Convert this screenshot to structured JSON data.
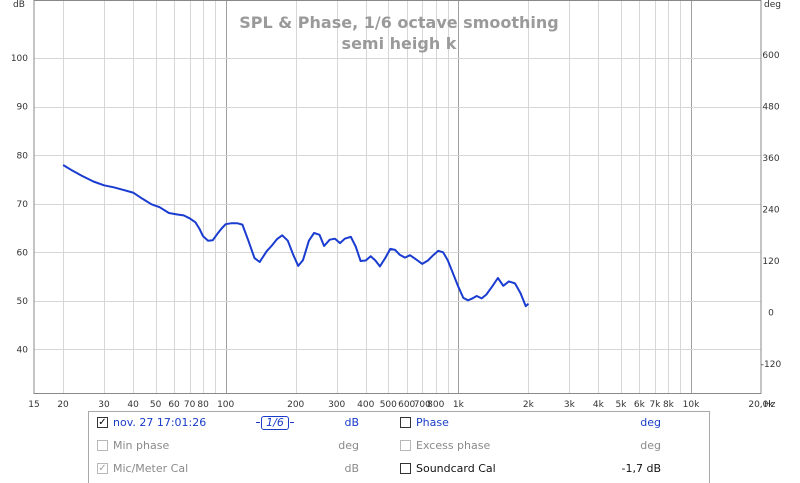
{
  "chart_data": {
    "type": "line",
    "title": "SPL & Phase, 1/6 octave smoothing",
    "subtitle": "semi heigh k",
    "xlabel": "Hz",
    "ylabel": "dB",
    "y2label": "deg",
    "x_scale": "log",
    "xlim": [
      15,
      20000
    ],
    "ylim": [
      31,
      112
    ],
    "y2lim": [
      -188,
      728
    ],
    "x_ticks": [
      {
        "v": 15,
        "label": "15"
      },
      {
        "v": 20,
        "label": "20"
      },
      {
        "v": 30,
        "label": "30"
      },
      {
        "v": 40,
        "label": "40"
      },
      {
        "v": 50,
        "label": "50"
      },
      {
        "v": 60,
        "label": "60"
      },
      {
        "v": 70,
        "label": "70"
      },
      {
        "v": 80,
        "label": "80"
      },
      {
        "v": 100,
        "label": "100"
      },
      {
        "v": 200,
        "label": "200"
      },
      {
        "v": 300,
        "label": "300"
      },
      {
        "v": 400,
        "label": "400"
      },
      {
        "v": 500,
        "label": "500"
      },
      {
        "v": 600,
        "label": "600"
      },
      {
        "v": 700,
        "label": "700"
      },
      {
        "v": 800,
        "label": "800"
      },
      {
        "v": 1000,
        "label": "1k"
      },
      {
        "v": 2000,
        "label": "2k"
      },
      {
        "v": 3000,
        "label": "3k"
      },
      {
        "v": 4000,
        "label": "4k"
      },
      {
        "v": 5000,
        "label": "5k"
      },
      {
        "v": 6000,
        "label": "6k"
      },
      {
        "v": 7000,
        "label": "7k"
      },
      {
        "v": 8000,
        "label": "8k"
      },
      {
        "v": 10000,
        "label": "10k"
      },
      {
        "v": 20000,
        "label": "20,0k"
      }
    ],
    "y_ticks": [
      40,
      50,
      60,
      70,
      80,
      90,
      100
    ],
    "y2_ticks": [
      -120,
      0,
      120,
      240,
      360,
      480,
      600
    ],
    "grid": true,
    "series": [
      {
        "name": "nov. 27 17:01:26",
        "color": "#1a3cd0",
        "x": [
          20,
          22,
          24,
          27,
          30,
          33,
          36,
          40,
          44,
          48,
          52,
          57,
          62,
          66,
          70,
          74,
          77,
          80,
          84,
          88,
          92,
          96,
          100,
          106,
          112,
          118,
          125,
          133,
          140,
          150,
          158,
          166,
          175,
          185,
          195,
          205,
          215,
          228,
          240,
          253,
          265,
          280,
          295,
          310,
          325,
          345,
          362,
          380,
          400,
          420,
          440,
          460,
          485,
          510,
          535,
          560,
          590,
          620,
          660,
          700,
          740,
          780,
          820,
          860,
          900,
          950,
          1000,
          1050,
          1100,
          1150,
          1200,
          1260,
          1320,
          1400,
          1480,
          1560,
          1650,
          1750,
          1850,
          1950,
          2000
        ],
        "y": [
          78.0,
          76.8,
          75.8,
          74.6,
          73.8,
          73.4,
          72.9,
          72.3,
          71.0,
          69.9,
          69.3,
          68.1,
          67.8,
          67.6,
          67.0,
          66.2,
          64.9,
          63.3,
          62.4,
          62.5,
          63.8,
          64.9,
          65.8,
          66.0,
          66.0,
          65.7,
          62.5,
          58.8,
          58.0,
          60.2,
          61.4,
          62.7,
          63.5,
          62.4,
          59.5,
          57.2,
          58.4,
          62.4,
          64.0,
          63.6,
          61.3,
          62.6,
          62.8,
          61.9,
          62.8,
          63.2,
          61.2,
          58.2,
          58.3,
          59.2,
          58.3,
          57.1,
          58.8,
          60.7,
          60.5,
          59.5,
          58.9,
          59.4,
          58.5,
          57.6,
          58.3,
          59.4,
          60.3,
          60.0,
          58.4,
          55.6,
          52.9,
          50.6,
          50.1,
          50.5,
          51.0,
          50.5,
          51.3,
          53.0,
          54.7,
          53.1,
          54.0,
          53.6,
          51.6,
          48.9,
          49.4
        ]
      }
    ]
  },
  "legend": {
    "rows": [
      {
        "checked": true,
        "name": "nov. 27 17:01:26",
        "unit": "dB",
        "right_checked": false,
        "right_name": "Phase",
        "right_unit": "deg"
      },
      {
        "checked": false,
        "name": "Min phase",
        "unit": "deg",
        "right_checked": false,
        "right_name": "Excess phase",
        "right_unit": "deg"
      },
      {
        "checked": true,
        "name": "Mic/Meter Cal",
        "unit": "dB",
        "right_checked": false,
        "right_name": "Soundcard Cal",
        "right_unit": "-1,7 dB"
      }
    ],
    "smoothing_badge": "1/6"
  },
  "icons": {
    "checked": "checkbox-checked-icon",
    "unchecked": "checkbox-unchecked-icon"
  }
}
